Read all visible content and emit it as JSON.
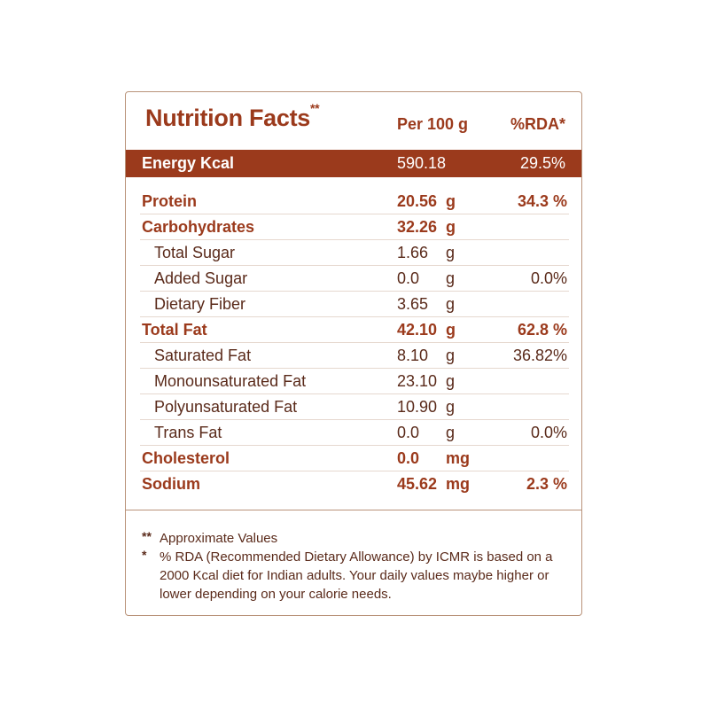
{
  "header": {
    "title": "Nutrition Facts",
    "title_mark": "**",
    "per_label": "Per 100 g",
    "rda_label": "%RDA*"
  },
  "energy": {
    "label": "Energy Kcal",
    "value": "590.18",
    "rda": "29.5%"
  },
  "rows": [
    {
      "name": "Protein",
      "value": "20.56",
      "unit": "g",
      "rda": "34.3 %",
      "level": "main"
    },
    {
      "name": "Carbohydrates",
      "value": "32.26",
      "unit": "g",
      "rda": "",
      "level": "main"
    },
    {
      "name": "Total Sugar",
      "value": "1.66",
      "unit": "g",
      "rda": "",
      "level": "sub"
    },
    {
      "name": "Added Sugar",
      "value": "0.0",
      "unit": "g",
      "rda": "0.0%",
      "level": "sub"
    },
    {
      "name": "Dietary Fiber",
      "value": "3.65",
      "unit": "g",
      "rda": "",
      "level": "sub"
    },
    {
      "name": "Total Fat",
      "value": "42.10",
      "unit": "g",
      "rda": "62.8 %",
      "level": "main"
    },
    {
      "name": "Saturated Fat",
      "value": "8.10",
      "unit": "g",
      "rda": "36.82%",
      "level": "sub"
    },
    {
      "name": "Monounsaturated Fat",
      "value": "23.10",
      "unit": "g",
      "rda": "",
      "level": "sub"
    },
    {
      "name": "Polyunsaturated Fat",
      "value": "10.90",
      "unit": "g",
      "rda": "",
      "level": "sub"
    },
    {
      "name": "Trans Fat",
      "value": "0.0",
      "unit": "g",
      "rda": "0.0%",
      "level": "sub"
    },
    {
      "name": "Cholesterol",
      "value": "0.0",
      "unit": "mg",
      "rda": "",
      "level": "main"
    },
    {
      "name": "Sodium",
      "value": "45.62",
      "unit": "mg",
      "rda": "2.3 %",
      "level": "main"
    }
  ],
  "footnotes": [
    {
      "mark": "**",
      "text": "Approximate Values"
    },
    {
      "mark": "*",
      "text": "% RDA (Recommended Dietary Allowance) by ICMR is based on a 2000 Kcal diet for Indian adults. Your daily values maybe higher or lower depending on your calorie needs."
    }
  ],
  "colors": {
    "accent": "#9b3a1c",
    "text": "#5a2a1a",
    "border": "#b9937a"
  }
}
